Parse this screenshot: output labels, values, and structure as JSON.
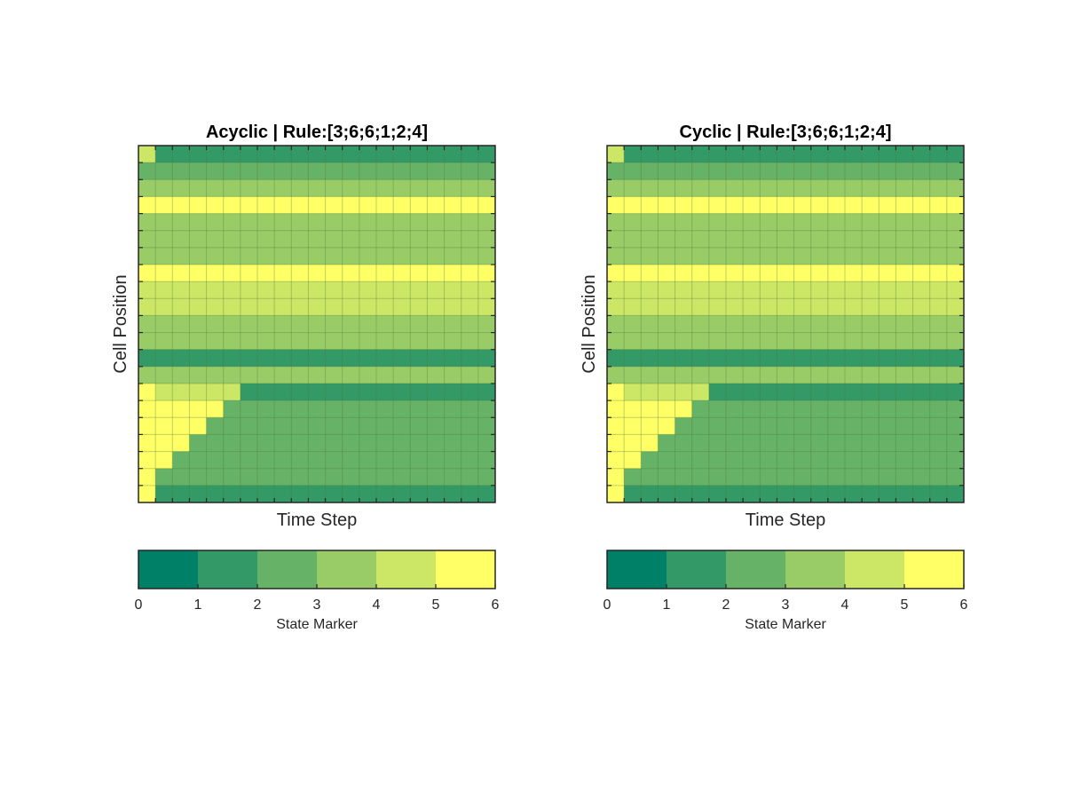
{
  "chart_data": [
    {
      "type": "heatmap",
      "title": "Acyclic | Rule:[3;6;6;1;2;4]",
      "xlabel": "Time Step",
      "ylabel": "Cell Position",
      "grid": true,
      "colormap": [
        "#008066",
        "#339966",
        "#66b266",
        "#99cc66",
        "#cce666",
        "#ffff66"
      ],
      "colorbar": {
        "label": "State Marker",
        "ticks": [
          0,
          1,
          2,
          3,
          4,
          5,
          6
        ],
        "clim": [
          0,
          6
        ]
      },
      "rows": 21,
      "cols": 21,
      "values": [
        [
          4,
          1,
          1,
          1,
          1,
          1,
          1,
          1,
          1,
          1,
          1,
          1,
          1,
          1,
          1,
          1,
          1,
          1,
          1,
          1,
          1
        ],
        [
          2,
          2,
          2,
          2,
          2,
          2,
          2,
          2,
          2,
          2,
          2,
          2,
          2,
          2,
          2,
          2,
          2,
          2,
          2,
          2,
          2
        ],
        [
          3,
          3,
          3,
          3,
          3,
          3,
          3,
          3,
          3,
          3,
          3,
          3,
          3,
          3,
          3,
          3,
          3,
          3,
          3,
          3,
          3
        ],
        [
          5,
          5,
          5,
          5,
          5,
          5,
          5,
          5,
          5,
          5,
          5,
          5,
          5,
          5,
          5,
          5,
          5,
          5,
          5,
          5,
          5
        ],
        [
          3,
          3,
          3,
          3,
          3,
          3,
          3,
          3,
          3,
          3,
          3,
          3,
          3,
          3,
          3,
          3,
          3,
          3,
          3,
          3,
          3
        ],
        [
          3,
          3,
          3,
          3,
          3,
          3,
          3,
          3,
          3,
          3,
          3,
          3,
          3,
          3,
          3,
          3,
          3,
          3,
          3,
          3,
          3
        ],
        [
          3,
          3,
          3,
          3,
          3,
          3,
          3,
          3,
          3,
          3,
          3,
          3,
          3,
          3,
          3,
          3,
          3,
          3,
          3,
          3,
          3
        ],
        [
          5,
          5,
          5,
          5,
          5,
          5,
          5,
          5,
          5,
          5,
          5,
          5,
          5,
          5,
          5,
          5,
          5,
          5,
          5,
          5,
          5
        ],
        [
          4,
          4,
          4,
          4,
          4,
          4,
          4,
          4,
          4,
          4,
          4,
          4,
          4,
          4,
          4,
          4,
          4,
          4,
          4,
          4,
          4
        ],
        [
          4,
          4,
          4,
          4,
          4,
          4,
          4,
          4,
          4,
          4,
          4,
          4,
          4,
          4,
          4,
          4,
          4,
          4,
          4,
          4,
          4
        ],
        [
          3,
          3,
          3,
          3,
          3,
          3,
          3,
          3,
          3,
          3,
          3,
          3,
          3,
          3,
          3,
          3,
          3,
          3,
          3,
          3,
          3
        ],
        [
          3,
          3,
          3,
          3,
          3,
          3,
          3,
          3,
          3,
          3,
          3,
          3,
          3,
          3,
          3,
          3,
          3,
          3,
          3,
          3,
          3
        ],
        [
          1,
          1,
          1,
          1,
          1,
          1,
          1,
          1,
          1,
          1,
          1,
          1,
          1,
          1,
          1,
          1,
          1,
          1,
          1,
          1,
          1
        ],
        [
          3,
          3,
          3,
          3,
          3,
          3,
          3,
          3,
          3,
          3,
          3,
          3,
          3,
          3,
          3,
          3,
          3,
          3,
          3,
          3,
          3
        ],
        [
          5,
          4,
          4,
          4,
          4,
          4,
          1,
          1,
          1,
          1,
          1,
          1,
          1,
          1,
          1,
          1,
          1,
          1,
          1,
          1,
          1
        ],
        [
          5,
          5,
          5,
          5,
          5,
          2,
          2,
          2,
          2,
          2,
          2,
          2,
          2,
          2,
          2,
          2,
          2,
          2,
          2,
          2,
          2
        ],
        [
          5,
          5,
          5,
          5,
          2,
          2,
          2,
          2,
          2,
          2,
          2,
          2,
          2,
          2,
          2,
          2,
          2,
          2,
          2,
          2,
          2
        ],
        [
          5,
          5,
          5,
          2,
          2,
          2,
          2,
          2,
          2,
          2,
          2,
          2,
          2,
          2,
          2,
          2,
          2,
          2,
          2,
          2,
          2
        ],
        [
          5,
          5,
          2,
          2,
          2,
          2,
          2,
          2,
          2,
          2,
          2,
          2,
          2,
          2,
          2,
          2,
          2,
          2,
          2,
          2,
          2
        ],
        [
          5,
          2,
          2,
          2,
          2,
          2,
          2,
          2,
          2,
          2,
          2,
          2,
          2,
          2,
          2,
          2,
          2,
          2,
          2,
          2,
          2
        ],
        [
          5,
          1,
          1,
          1,
          1,
          1,
          1,
          1,
          1,
          1,
          1,
          1,
          1,
          1,
          1,
          1,
          1,
          1,
          1,
          1,
          1
        ]
      ]
    },
    {
      "type": "heatmap",
      "title": "Cyclic | Rule:[3;6;6;1;2;4]",
      "xlabel": "Time Step",
      "ylabel": "Cell Position",
      "grid": true,
      "colormap": [
        "#008066",
        "#339966",
        "#66b266",
        "#99cc66",
        "#cce666",
        "#ffff66"
      ],
      "colorbar": {
        "label": "State Marker",
        "ticks": [
          0,
          1,
          2,
          3,
          4,
          5,
          6
        ],
        "clim": [
          0,
          6
        ]
      },
      "rows": 21,
      "cols": 21,
      "values": [
        [
          4,
          1,
          1,
          1,
          1,
          1,
          1,
          1,
          1,
          1,
          1,
          1,
          1,
          1,
          1,
          1,
          1,
          1,
          1,
          1,
          1
        ],
        [
          2,
          2,
          2,
          2,
          2,
          2,
          2,
          2,
          2,
          2,
          2,
          2,
          2,
          2,
          2,
          2,
          2,
          2,
          2,
          2,
          2
        ],
        [
          3,
          3,
          3,
          3,
          3,
          3,
          3,
          3,
          3,
          3,
          3,
          3,
          3,
          3,
          3,
          3,
          3,
          3,
          3,
          3,
          3
        ],
        [
          5,
          5,
          5,
          5,
          5,
          5,
          5,
          5,
          5,
          5,
          5,
          5,
          5,
          5,
          5,
          5,
          5,
          5,
          5,
          5,
          5
        ],
        [
          3,
          3,
          3,
          3,
          3,
          3,
          3,
          3,
          3,
          3,
          3,
          3,
          3,
          3,
          3,
          3,
          3,
          3,
          3,
          3,
          3
        ],
        [
          3,
          3,
          3,
          3,
          3,
          3,
          3,
          3,
          3,
          3,
          3,
          3,
          3,
          3,
          3,
          3,
          3,
          3,
          3,
          3,
          3
        ],
        [
          3,
          3,
          3,
          3,
          3,
          3,
          3,
          3,
          3,
          3,
          3,
          3,
          3,
          3,
          3,
          3,
          3,
          3,
          3,
          3,
          3
        ],
        [
          5,
          5,
          5,
          5,
          5,
          5,
          5,
          5,
          5,
          5,
          5,
          5,
          5,
          5,
          5,
          5,
          5,
          5,
          5,
          5,
          5
        ],
        [
          4,
          4,
          4,
          4,
          4,
          4,
          4,
          4,
          4,
          4,
          4,
          4,
          4,
          4,
          4,
          4,
          4,
          4,
          4,
          4,
          4
        ],
        [
          4,
          4,
          4,
          4,
          4,
          4,
          4,
          4,
          4,
          4,
          4,
          4,
          4,
          4,
          4,
          4,
          4,
          4,
          4,
          4,
          4
        ],
        [
          3,
          3,
          3,
          3,
          3,
          3,
          3,
          3,
          3,
          3,
          3,
          3,
          3,
          3,
          3,
          3,
          3,
          3,
          3,
          3,
          3
        ],
        [
          3,
          3,
          3,
          3,
          3,
          3,
          3,
          3,
          3,
          3,
          3,
          3,
          3,
          3,
          3,
          3,
          3,
          3,
          3,
          3,
          3
        ],
        [
          1,
          1,
          1,
          1,
          1,
          1,
          1,
          1,
          1,
          1,
          1,
          1,
          1,
          1,
          1,
          1,
          1,
          1,
          1,
          1,
          1
        ],
        [
          3,
          3,
          3,
          3,
          3,
          3,
          3,
          3,
          3,
          3,
          3,
          3,
          3,
          3,
          3,
          3,
          3,
          3,
          3,
          3,
          3
        ],
        [
          5,
          4,
          4,
          4,
          4,
          4,
          1,
          1,
          1,
          1,
          1,
          1,
          1,
          1,
          1,
          1,
          1,
          1,
          1,
          1,
          1
        ],
        [
          5,
          5,
          5,
          5,
          5,
          2,
          2,
          2,
          2,
          2,
          2,
          2,
          2,
          2,
          2,
          2,
          2,
          2,
          2,
          2,
          2
        ],
        [
          5,
          5,
          5,
          5,
          2,
          2,
          2,
          2,
          2,
          2,
          2,
          2,
          2,
          2,
          2,
          2,
          2,
          2,
          2,
          2,
          2
        ],
        [
          5,
          5,
          5,
          2,
          2,
          2,
          2,
          2,
          2,
          2,
          2,
          2,
          2,
          2,
          2,
          2,
          2,
          2,
          2,
          2,
          2
        ],
        [
          5,
          5,
          2,
          2,
          2,
          2,
          2,
          2,
          2,
          2,
          2,
          2,
          2,
          2,
          2,
          2,
          2,
          2,
          2,
          2,
          2
        ],
        [
          5,
          2,
          2,
          2,
          2,
          2,
          2,
          2,
          2,
          2,
          2,
          2,
          2,
          2,
          2,
          2,
          2,
          2,
          2,
          2,
          2
        ],
        [
          5,
          1,
          1,
          1,
          1,
          1,
          1,
          1,
          1,
          1,
          1,
          1,
          1,
          1,
          1,
          1,
          1,
          1,
          1,
          1,
          1
        ]
      ]
    }
  ]
}
